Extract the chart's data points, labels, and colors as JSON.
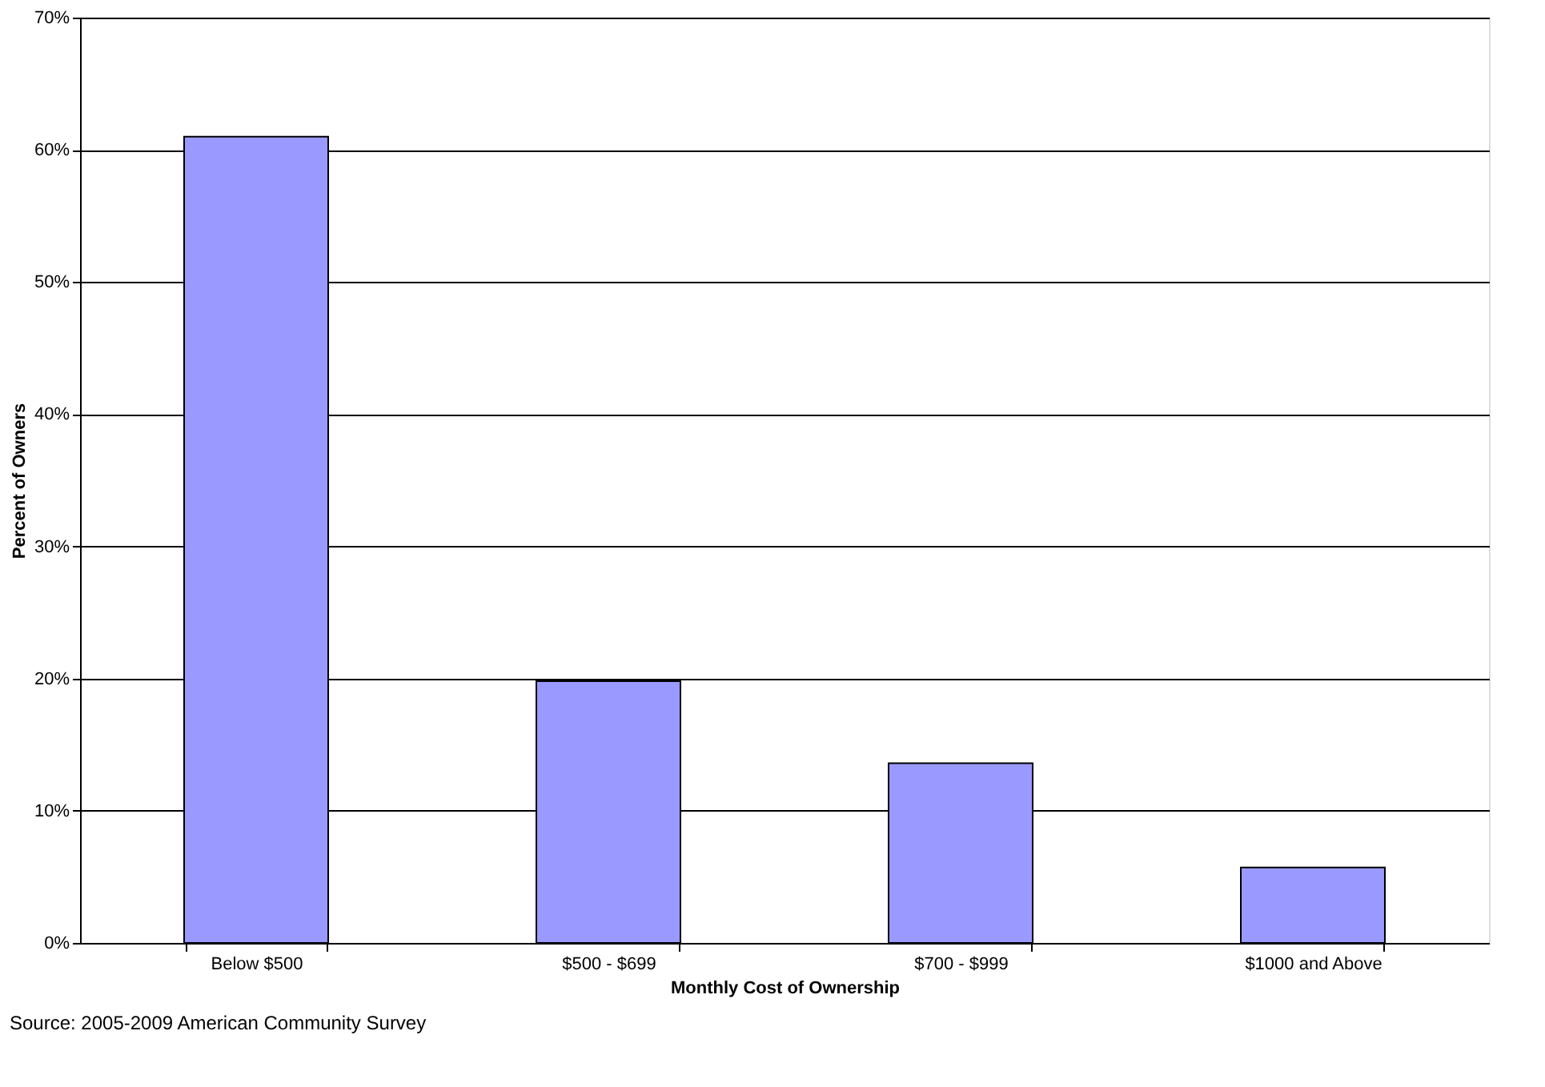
{
  "chart_data": {
    "type": "bar",
    "xlabel": "Monthly Cost of Ownership",
    "ylabel": "Percent of Owners",
    "categories": [
      "Below $500",
      "$500 - $699",
      "$700 - $999",
      "$1000 and Above"
    ],
    "values": [
      61,
      19.8,
      13.6,
      5.7
    ],
    "color": "#9999ff",
    "ylim": [
      0,
      70
    ],
    "yticks": [
      {
        "value": 0,
        "label": "0%"
      },
      {
        "value": 10,
        "label": "10%"
      },
      {
        "value": 20,
        "label": "20%"
      },
      {
        "value": 30,
        "label": "30%"
      },
      {
        "value": 40,
        "label": "40%"
      },
      {
        "value": 50,
        "label": "50%"
      },
      {
        "value": 60,
        "label": "60%"
      },
      {
        "value": 70,
        "label": "70%"
      }
    ],
    "grid": "y",
    "annotations": [
      "Source: 2005-2009 American Community Survey"
    ]
  }
}
